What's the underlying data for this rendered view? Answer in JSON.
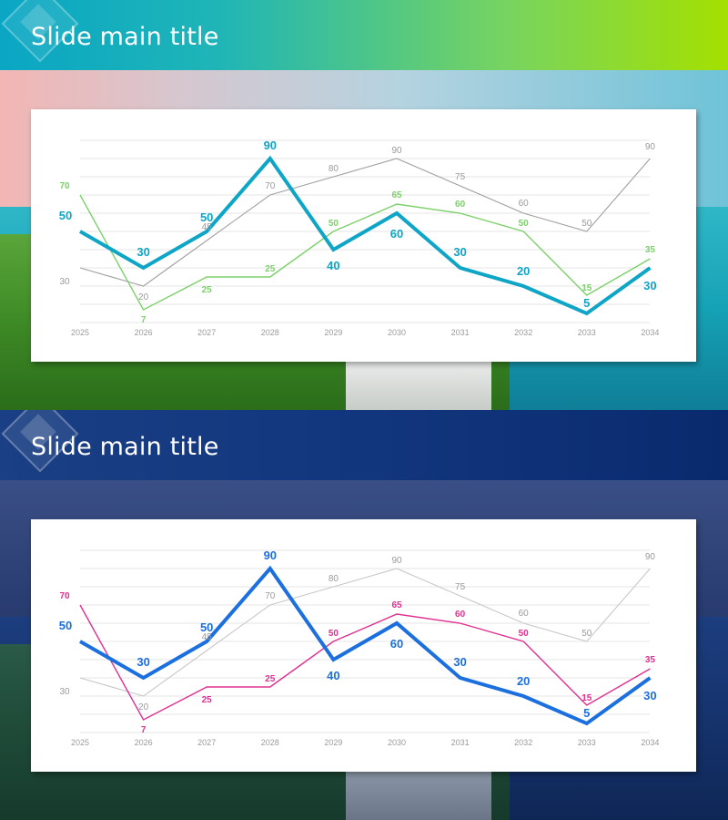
{
  "slides": [
    {
      "title": "Slide main title",
      "theme": {
        "main": "#0ea5c6",
        "secondary": "#7cd06a",
        "tertiary": "#a0a0a0"
      }
    },
    {
      "title": "Slide main title",
      "theme": {
        "main": "#1c6fde",
        "secondary": "#e0308f",
        "tertiary": "#c8c8c8"
      }
    }
  ],
  "chart_data": [
    {
      "type": "line",
      "categories": [
        "2025",
        "2026",
        "2027",
        "2028",
        "2029",
        "2030",
        "2031",
        "2032",
        "2033",
        "2034"
      ],
      "ylim": [
        0,
        100
      ],
      "grid": true,
      "series": [
        {
          "values": [
            50,
            30,
            50,
            90,
            40,
            60,
            30,
            20,
            5,
            30
          ]
        },
        {
          "values": [
            70,
            7,
            25,
            25,
            50,
            65,
            60,
            50,
            15,
            35
          ]
        },
        {
          "values": [
            30,
            20,
            45,
            70,
            80,
            90,
            75,
            60,
            50,
            90
          ]
        }
      ]
    },
    {
      "type": "line",
      "categories": [
        "2025",
        "2026",
        "2027",
        "2028",
        "2029",
        "2030",
        "2031",
        "2032",
        "2033",
        "2034"
      ],
      "ylim": [
        0,
        100
      ],
      "grid": true,
      "series": [
        {
          "values": [
            50,
            30,
            50,
            90,
            40,
            60,
            30,
            20,
            5,
            30
          ]
        },
        {
          "values": [
            70,
            7,
            25,
            25,
            50,
            65,
            60,
            50,
            15,
            35
          ]
        },
        {
          "values": [
            30,
            20,
            45,
            70,
            80,
            90,
            75,
            60,
            50,
            90
          ]
        }
      ]
    }
  ]
}
